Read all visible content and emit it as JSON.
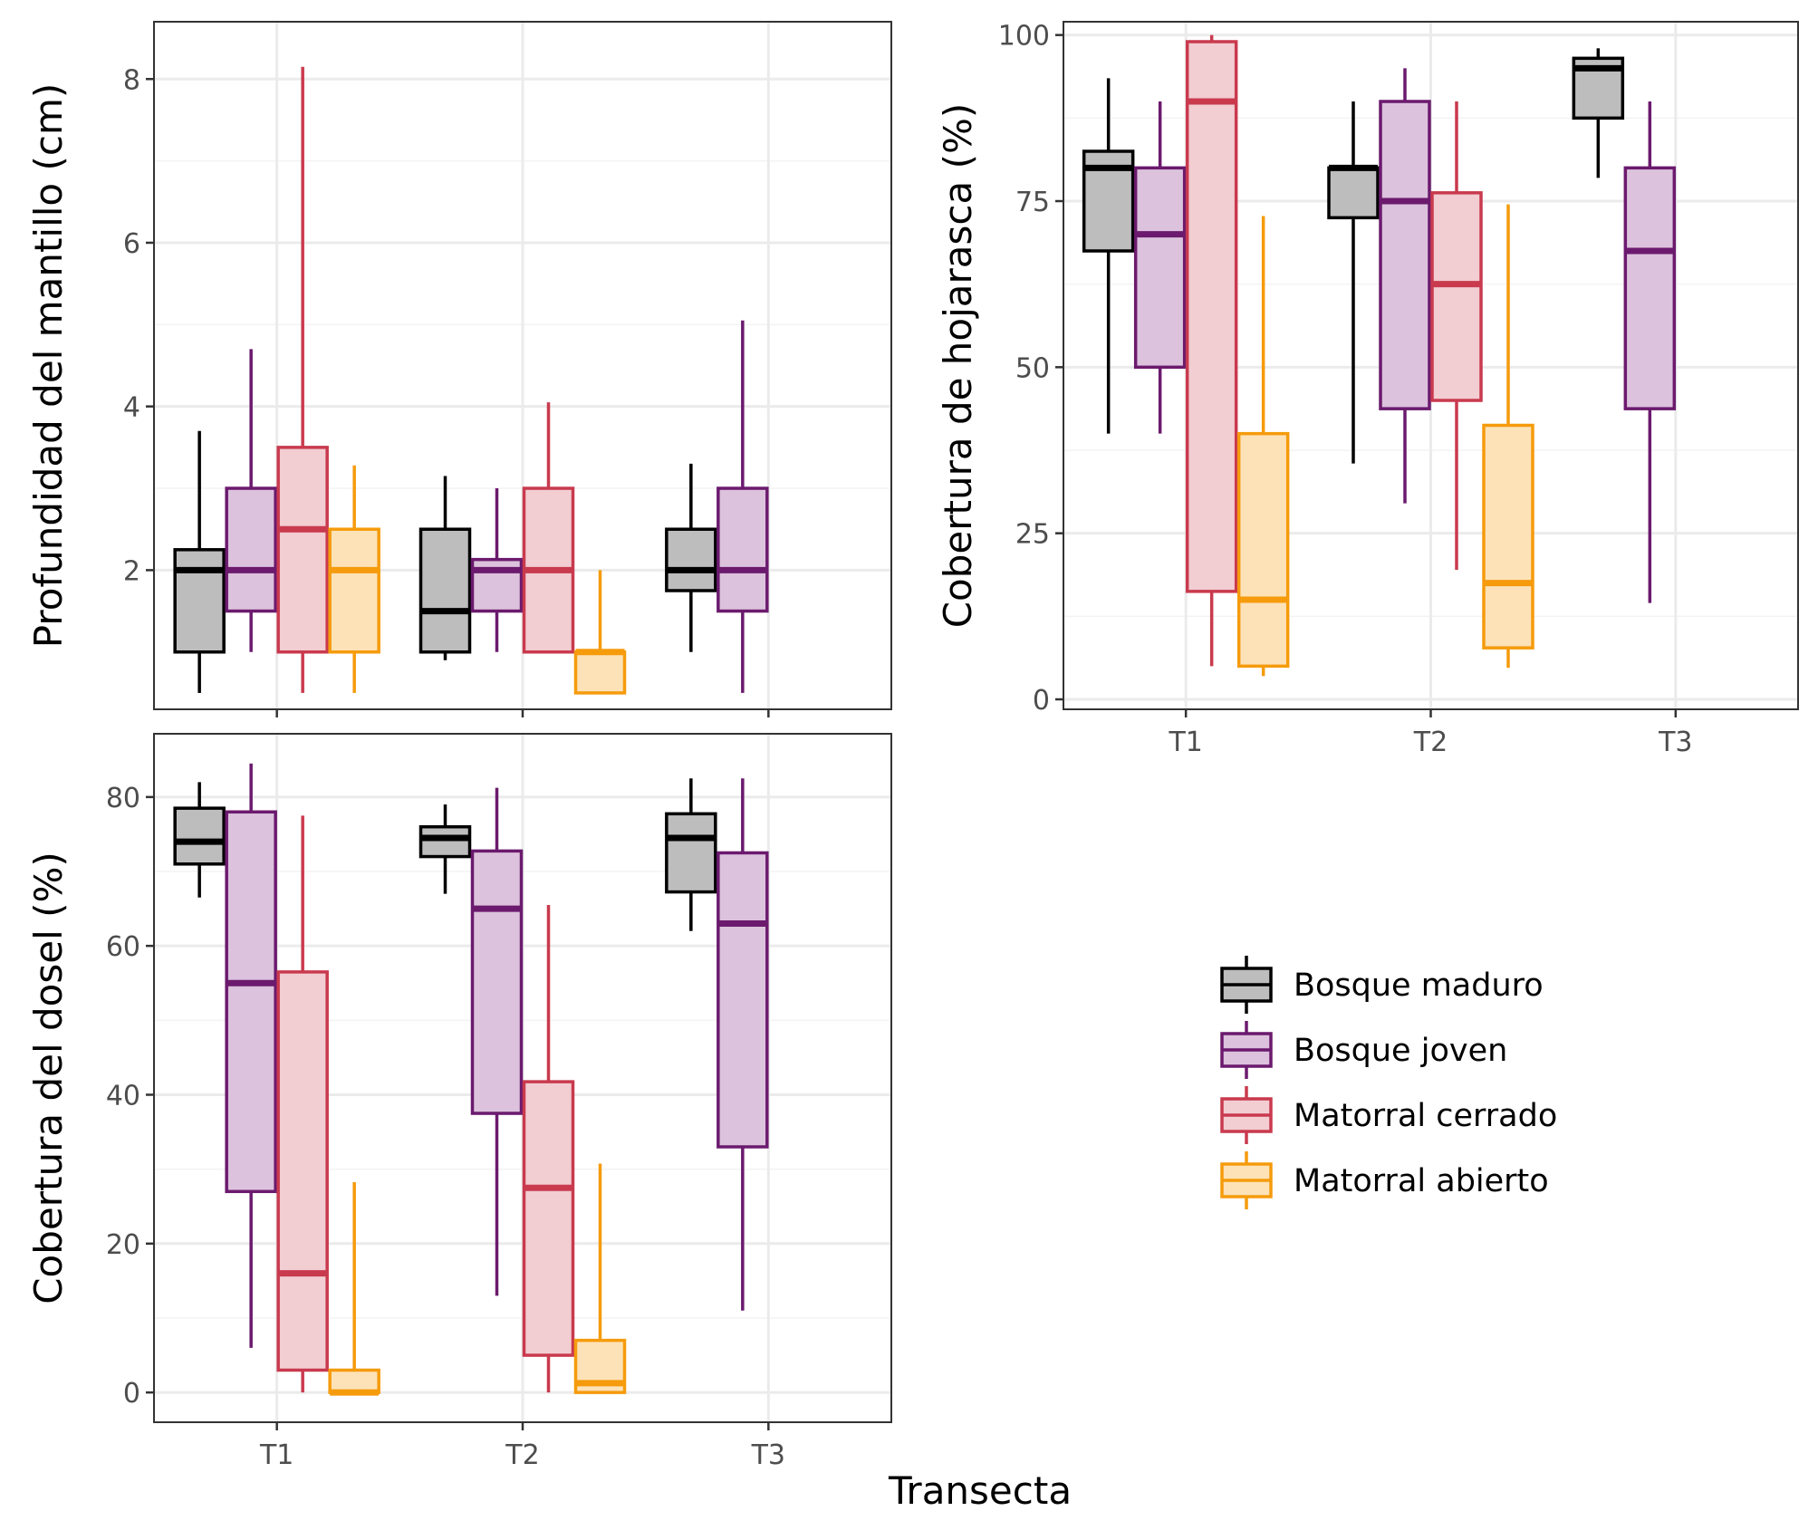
{
  "x_title": "Transecta",
  "groups": [
    "Bosque maduro",
    "Bosque joven",
    "Matorral cerrado",
    "Matorral abierto"
  ],
  "colors": {
    "Bosque maduro": {
      "stroke": "#000000",
      "fill": "#bdbdbd"
    },
    "Bosque joven": {
      "stroke": "#6b1a6e",
      "fill": "#dcc2dc"
    },
    "Matorral cerrado": {
      "stroke": "#c93a4e",
      "fill": "#f2cdd2"
    },
    "Matorral abierto": {
      "stroke": "#f59b0c",
      "fill": "#fde2b8"
    }
  },
  "legend": {
    "items": [
      "Bosque maduro",
      "Bosque joven",
      "Matorral cerrado",
      "Matorral abierto"
    ],
    "placement": "bottom-right"
  },
  "chart_data": [
    {
      "type": "boxplot",
      "ylabel": "Profundidad del mantillo (cm)",
      "categories": [
        "T1",
        "T2",
        "T3"
      ],
      "show_x_ticks": false,
      "ylim": [
        0.3,
        8.7
      ],
      "yticks": [
        2,
        4,
        6,
        8
      ],
      "grid": true,
      "series": [
        {
          "name": "Bosque maduro",
          "boxes": [
            [
              0.5,
              1.0,
              2.0,
              2.25,
              3.7
            ],
            [
              0.9,
              1.0,
              1.5,
              2.5,
              3.15
            ],
            [
              1.0,
              1.75,
              2.0,
              2.5,
              3.3
            ]
          ]
        },
        {
          "name": "Bosque joven",
          "boxes": [
            [
              1.0,
              1.5,
              2.0,
              3.0,
              4.7
            ],
            [
              1.0,
              1.5,
              2.0,
              2.13,
              3.0
            ],
            [
              0.5,
              1.5,
              2.0,
              3.0,
              5.05
            ]
          ]
        },
        {
          "name": "Matorral cerrado",
          "boxes": [
            [
              0.5,
              1.0,
              2.5,
              3.5,
              8.15
            ],
            [
              1.0,
              1.0,
              2.0,
              3.0,
              4.05
            ],
            null
          ]
        },
        {
          "name": "Matorral abierto",
          "boxes": [
            [
              0.5,
              1.0,
              2.0,
              2.5,
              3.28
            ],
            [
              0.5,
              0.5,
              1.0,
              1.0,
              2.0
            ],
            null
          ]
        }
      ]
    },
    {
      "type": "boxplot",
      "ylabel": "Cobertura de hojarasca (%)",
      "categories": [
        "T1",
        "T2",
        "T3"
      ],
      "show_x_ticks": true,
      "ylim": [
        -1.5,
        102
      ],
      "yticks": [
        0,
        25,
        50,
        75,
        100
      ],
      "grid": true,
      "series": [
        {
          "name": "Bosque maduro",
          "boxes": [
            [
              40,
              67.5,
              80,
              82.5,
              93.5
            ],
            [
              35.5,
              72.5,
              80,
              80,
              90
            ],
            [
              78.5,
              87.5,
              95,
              96.5,
              98
            ]
          ]
        },
        {
          "name": "Bosque joven",
          "boxes": [
            [
              40,
              50,
              70,
              80,
              90
            ],
            [
              29.5,
              43.75,
              75,
              90,
              95
            ],
            [
              14.5,
              43.75,
              67.5,
              80,
              90
            ]
          ]
        },
        {
          "name": "Matorral cerrado",
          "boxes": [
            [
              5,
              16.25,
              90,
              99,
              100
            ],
            [
              19.5,
              45,
              62.5,
              76.25,
              90
            ],
            null
          ]
        },
        {
          "name": "Matorral abierto",
          "boxes": [
            [
              3.5,
              5,
              15,
              40,
              72.75
            ],
            [
              4.75,
              7.75,
              17.5,
              41.25,
              74.5
            ],
            null
          ]
        }
      ]
    },
    {
      "type": "boxplot",
      "ylabel": "Cobertura del dosel (%)",
      "categories": [
        "T1",
        "T2",
        "T3"
      ],
      "show_x_ticks": true,
      "ylim": [
        -4,
        88.5
      ],
      "yticks": [
        0,
        20,
        40,
        60,
        80
      ],
      "grid": true,
      "series": [
        {
          "name": "Bosque maduro",
          "boxes": [
            [
              66.5,
              71,
              74,
              78.5,
              82
            ],
            [
              67,
              72,
              74.5,
              76,
              79
            ],
            [
              62,
              67.25,
              74.5,
              77.75,
              82.5
            ]
          ]
        },
        {
          "name": "Bosque joven",
          "boxes": [
            [
              6,
              27,
              55,
              78,
              84.5
            ],
            [
              13,
              37.5,
              65,
              72.75,
              81.25
            ],
            [
              11,
              33,
              63,
              72.5,
              82.5
            ]
          ]
        },
        {
          "name": "Matorral cerrado",
          "boxes": [
            [
              0,
              3,
              16,
              56.5,
              77.5
            ],
            [
              0,
              5,
              27.5,
              41.75,
              65.5
            ],
            null
          ]
        },
        {
          "name": "Matorral abierto",
          "boxes": [
            [
              0,
              0,
              0,
              3,
              28.25
            ],
            [
              0,
              0,
              1.25,
              7,
              30.75
            ],
            null
          ]
        }
      ]
    }
  ]
}
